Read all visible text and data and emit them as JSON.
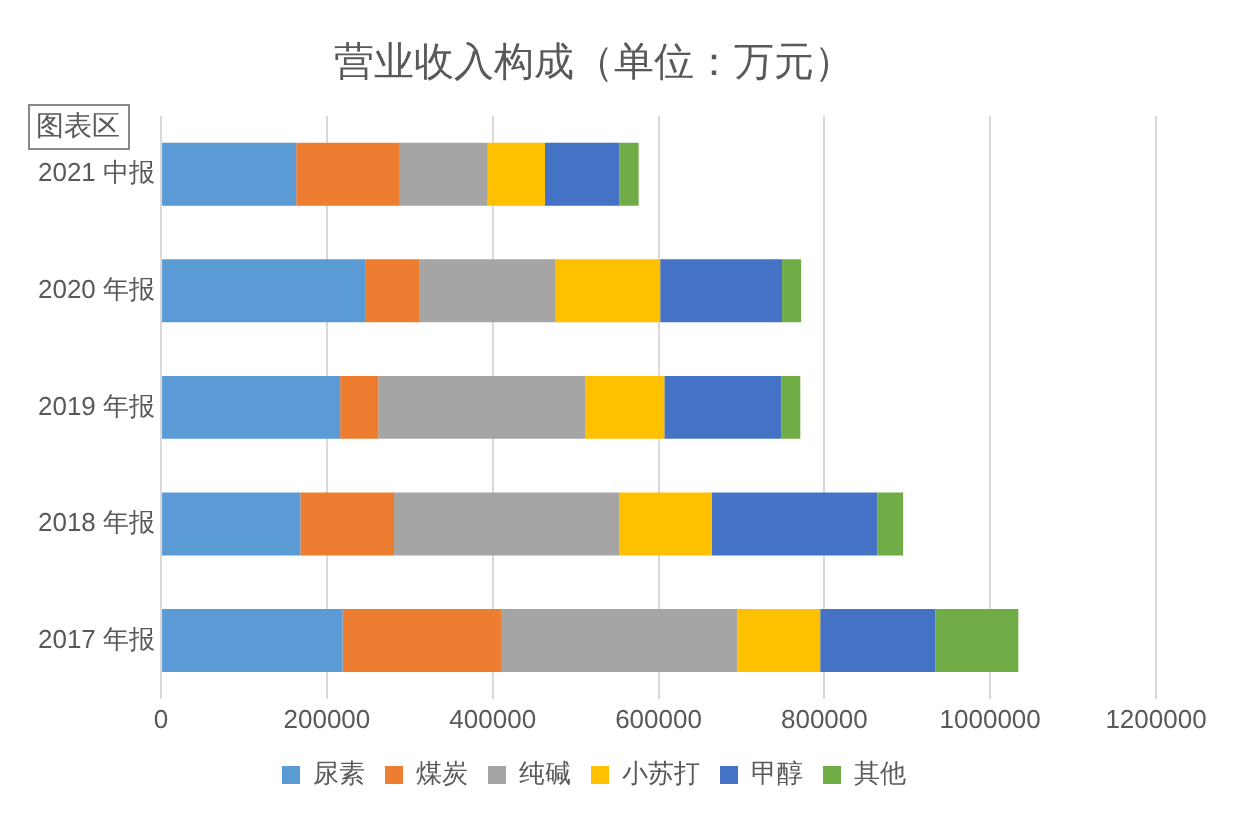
{
  "chart_data": {
    "type": "bar",
    "orientation": "horizontal",
    "stacked": true,
    "title": "营业收入构成（单位：万元）",
    "annotations": [
      "图表区"
    ],
    "categories": [
      "2021 中报",
      "2020 年报",
      "2019 年报",
      "2018 年报",
      "2017 年报"
    ],
    "series": [
      {
        "name": "尿素",
        "color": "#5b9bd5",
        "values": [
          163000,
          247000,
          216000,
          168000,
          219000
        ]
      },
      {
        "name": "煤炭",
        "color": "#ed7d31",
        "values": [
          125000,
          65000,
          46000,
          113000,
          192000
        ]
      },
      {
        "name": "纯碱",
        "color": "#a5a5a5",
        "values": [
          106000,
          164000,
          250000,
          272000,
          284000
        ]
      },
      {
        "name": "小苏打",
        "color": "#ffc000",
        "values": [
          69000,
          126000,
          95000,
          111000,
          100000
        ]
      },
      {
        "name": "甲醇",
        "color": "#4472c4",
        "values": [
          90000,
          147000,
          141000,
          200000,
          139000
        ]
      },
      {
        "name": "其他",
        "color": "#70ad47",
        "values": [
          23000,
          23000,
          23000,
          31000,
          100000
        ]
      }
    ],
    "xlim": [
      0,
      1200000
    ],
    "xticks": [
      0,
      200000,
      400000,
      600000,
      800000,
      1000000,
      1200000
    ],
    "grid": "x",
    "legend": "bottom"
  }
}
